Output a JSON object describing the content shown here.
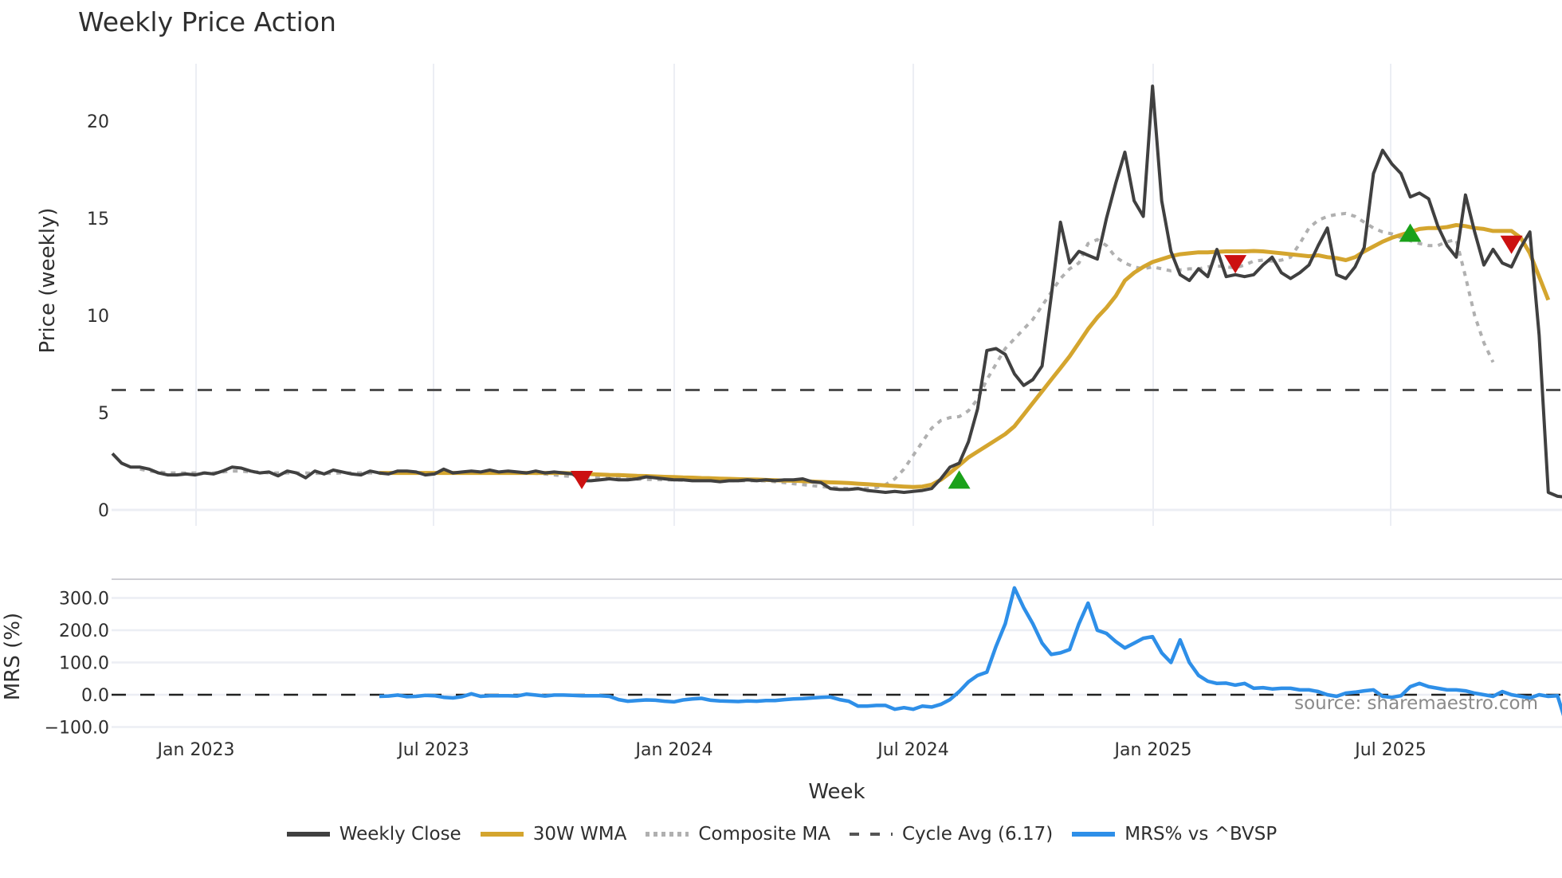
{
  "title": "Weekly Price Action",
  "source_text": "source: sharemaestro.com",
  "axes": {
    "price_ylabel": "Price (weekly)",
    "mrs_ylabel": "MRS (%)",
    "xlabel": "Week",
    "price_ticks": [
      "0",
      "5",
      "10",
      "15",
      "20"
    ],
    "mrs_ticks": [
      "300.0",
      "200.0",
      "100.0",
      "0.0",
      "−100.0"
    ],
    "x_ticks": [
      "Jan 2023",
      "Jul 2023",
      "Jan 2024",
      "Jul 2024",
      "Jan 2025",
      "Jul 2025"
    ]
  },
  "legend": [
    {
      "label": "Weekly Close",
      "color": "#404040",
      "style": "solid"
    },
    {
      "label": "30W WMA",
      "color": "#d4a52e",
      "style": "solid"
    },
    {
      "label": "Composite MA",
      "color": "#b0b0b0",
      "style": "dotted"
    },
    {
      "label": "Cycle Avg (6.17)",
      "color": "#555555",
      "style": "dashed"
    },
    {
      "label": "MRS% vs ^BVSP",
      "color": "#2e8fe8",
      "style": "solid"
    }
  ],
  "colors": {
    "weekly_close": "#404040",
    "wma": "#d4a52e",
    "composite": "#b0b0b0",
    "cycle": "#505050",
    "mrs": "#2e8fe8",
    "buy": "#1aa11a",
    "sell": "#cc1111",
    "grid": "#eceef4"
  },
  "chart_data": [
    {
      "type": "line",
      "title": "Weekly Price Action",
      "xlabel": "Week",
      "ylabel": "Price (weekly)",
      "ylim": [
        -0.3,
        22.5
      ],
      "x_ticks": [
        "Jan 2023",
        "Jul 2023",
        "Jan 2024",
        "Jul 2024",
        "Jan 2025",
        "Jul 2025"
      ],
      "x_start_week_offset": -9,
      "series": [
        {
          "name": "Weekly Close",
          "values": [
            2.9,
            2.4,
            2.2,
            2.2,
            2.1,
            1.9,
            1.8,
            1.8,
            1.85,
            1.8,
            1.9,
            1.85,
            2.0,
            2.2,
            2.15,
            2.0,
            1.9,
            1.95,
            1.75,
            2.0,
            1.9,
            1.65,
            2.0,
            1.85,
            2.05,
            1.95,
            1.85,
            1.8,
            2.0,
            1.9,
            1.85,
            2.0,
            2.0,
            1.95,
            1.8,
            1.85,
            2.1,
            1.9,
            1.95,
            2.0,
            1.95,
            2.05,
            1.95,
            2.0,
            1.95,
            1.9,
            2.0,
            1.9,
            1.95,
            1.9,
            1.85,
            1.5,
            1.5,
            1.55,
            1.6,
            1.55,
            1.55,
            1.6,
            1.7,
            1.65,
            1.6,
            1.55,
            1.55,
            1.5,
            1.5,
            1.5,
            1.45,
            1.5,
            1.5,
            1.55,
            1.5,
            1.55,
            1.5,
            1.55,
            1.55,
            1.6,
            1.45,
            1.4,
            1.1,
            1.05,
            1.05,
            1.1,
            1.0,
            0.95,
            0.9,
            0.95,
            0.9,
            0.95,
            1.0,
            1.1,
            1.6,
            2.2,
            2.4,
            3.5,
            5.2,
            8.2,
            8.3,
            8.0,
            7.0,
            6.4,
            6.7,
            7.4,
            11.0,
            14.8,
            12.7,
            13.3,
            13.1,
            12.9,
            15.0,
            16.8,
            18.4,
            15.9,
            15.1,
            21.8,
            15.9,
            13.3,
            12.1,
            11.8,
            12.4,
            12.0,
            13.4,
            12.0,
            12.1,
            12.0,
            12.1,
            12.6,
            13.0,
            12.2,
            11.9,
            12.2,
            12.6,
            13.6,
            14.5,
            12.1,
            11.9,
            12.5,
            13.5,
            17.3,
            18.5,
            17.8,
            17.3,
            16.1,
            16.3,
            16.0,
            14.6,
            13.6,
            13.0,
            16.2,
            14.3,
            12.6,
            13.4,
            12.7,
            12.5,
            13.5,
            14.3,
            9.0,
            0.9,
            0.7,
            0.65,
            0.35
          ]
        },
        {
          "name": "30W WMA",
          "start_index": 29,
          "values": [
            1.9,
            1.9,
            1.9,
            1.9,
            1.9,
            1.9,
            1.9,
            1.9,
            1.9,
            1.9,
            1.9,
            1.9,
            1.9,
            1.9,
            1.9,
            1.9,
            1.9,
            1.9,
            1.9,
            1.9,
            1.9,
            1.88,
            1.86,
            1.84,
            1.82,
            1.8,
            1.79,
            1.77,
            1.75,
            1.74,
            1.72,
            1.7,
            1.69,
            1.67,
            1.66,
            1.64,
            1.63,
            1.61,
            1.6,
            1.58,
            1.57,
            1.56,
            1.54,
            1.53,
            1.51,
            1.5,
            1.48,
            1.46,
            1.44,
            1.42,
            1.4,
            1.38,
            1.35,
            1.32,
            1.29,
            1.26,
            1.23,
            1.2,
            1.18,
            1.2,
            1.3,
            1.55,
            1.9,
            2.3,
            2.7,
            3.0,
            3.3,
            3.6,
            3.9,
            4.3,
            4.9,
            5.5,
            6.1,
            6.7,
            7.3,
            7.9,
            8.6,
            9.3,
            9.9,
            10.4,
            11.0,
            11.8,
            12.2,
            12.5,
            12.75,
            12.9,
            13.05,
            13.15,
            13.2,
            13.25,
            13.25,
            13.28,
            13.3,
            13.3,
            13.3,
            13.32,
            13.3,
            13.25,
            13.2,
            13.15,
            13.1,
            13.05,
            13.1,
            13.0,
            12.95,
            12.85,
            13.0,
            13.3,
            13.55,
            13.8,
            14.0,
            14.15,
            14.3,
            14.45,
            14.5,
            14.5,
            14.55,
            14.65,
            14.6,
            14.5,
            14.45,
            14.35,
            14.35,
            14.35,
            14.0,
            13.2,
            12.0,
            10.8
          ]
        },
        {
          "name": "Composite MA",
          "start_index": 3,
          "values": [
            2.1,
            2.0,
            1.95,
            1.9,
            1.9,
            1.9,
            1.9,
            1.9,
            1.9,
            1.95,
            2.0,
            2.0,
            1.95,
            1.95,
            1.9,
            1.9,
            1.9,
            1.9,
            1.9,
            1.88,
            1.88,
            1.88,
            1.9,
            1.9,
            1.9,
            1.9,
            1.9,
            1.9,
            1.9,
            1.9,
            1.9,
            1.9,
            1.9,
            1.92,
            1.92,
            1.92,
            1.92,
            1.92,
            1.9,
            1.9,
            1.9,
            1.9,
            1.9,
            1.88,
            1.85,
            1.8,
            1.75,
            1.72,
            1.7,
            1.68,
            1.66,
            1.64,
            1.62,
            1.6,
            1.58,
            1.57,
            1.56,
            1.55,
            1.54,
            1.53,
            1.52,
            1.52,
            1.51,
            1.5,
            1.5,
            1.5,
            1.5,
            1.5,
            1.49,
            1.45,
            1.4,
            1.35,
            1.3,
            1.25,
            1.2,
            1.15,
            1.12,
            1.1,
            1.1,
            1.1,
            1.15,
            1.3,
            1.6,
            2.1,
            2.8,
            3.5,
            4.2,
            4.6,
            4.75,
            4.8,
            5.1,
            5.7,
            6.7,
            7.5,
            8.3,
            8.8,
            9.3,
            9.8,
            10.5,
            11.2,
            11.9,
            12.4,
            12.7,
            13.7,
            13.9,
            13.6,
            13.0,
            12.7,
            12.5,
            12.4,
            12.5,
            12.4,
            12.3,
            12.35,
            12.4,
            12.4,
            12.5,
            12.55,
            12.5,
            12.45,
            12.6,
            12.8,
            12.85,
            12.8,
            12.85,
            13.0,
            13.7,
            14.5,
            14.9,
            15.1,
            15.2,
            15.25,
            15.1,
            14.8,
            14.5,
            14.3,
            14.2,
            14.0,
            13.85,
            13.7,
            13.6,
            13.6,
            13.8,
            13.9,
            12.0,
            10.0,
            8.6,
            7.6
          ]
        },
        {
          "name": "Cycle Avg (6.17)",
          "constant": 6.17
        }
      ],
      "markers": [
        {
          "type": "sell",
          "index": 51,
          "value": 1.6
        },
        {
          "type": "buy",
          "index": 92,
          "value": 1.5
        },
        {
          "type": "sell",
          "index": 122,
          "value": 12.7
        },
        {
          "type": "buy",
          "index": 141,
          "value": 14.2
        },
        {
          "type": "sell",
          "index": 152,
          "value": 13.7
        }
      ]
    },
    {
      "type": "line",
      "title": "MRS",
      "ylabel": "MRS (%)",
      "ylim": [
        -120,
        360
      ],
      "reference_line": 0,
      "series": [
        {
          "name": "MRS% vs ^BVSP",
          "start_index": 29,
          "values": [
            -5,
            -4,
            -1,
            -6,
            -5,
            -2,
            -3,
            -8,
            -10,
            -6,
            3,
            -5,
            -3,
            -3,
            -3,
            -4,
            2,
            -1,
            -4,
            -1,
            -1,
            -2,
            -3,
            -3,
            -3,
            -5,
            -15,
            -20,
            -18,
            -16,
            -17,
            -20,
            -22,
            -16,
            -13,
            -11,
            -17,
            -19,
            -20,
            -21,
            -19,
            -20,
            -18,
            -18,
            -15,
            -13,
            -12,
            -10,
            -8,
            -7,
            -15,
            -20,
            -35,
            -35,
            -33,
            -33,
            -45,
            -40,
            -45,
            -35,
            -38,
            -30,
            -15,
            10,
            40,
            60,
            70,
            150,
            220,
            331,
            270,
            220,
            160,
            125,
            130,
            140,
            220,
            284,
            200,
            190,
            165,
            145,
            160,
            175,
            180,
            130,
            100,
            170,
            100,
            60,
            42,
            35,
            36,
            30,
            35,
            20,
            22,
            18,
            20,
            20,
            15,
            15,
            10,
            0,
            -5,
            5,
            8,
            12,
            15,
            -5,
            -8,
            -3,
            25,
            35,
            25,
            20,
            15,
            15,
            12,
            5,
            0,
            -5,
            10,
            0,
            -5,
            -10,
            0,
            -5,
            -3,
            -95,
            -97,
            -97,
            -98
          ]
        }
      ]
    }
  ]
}
